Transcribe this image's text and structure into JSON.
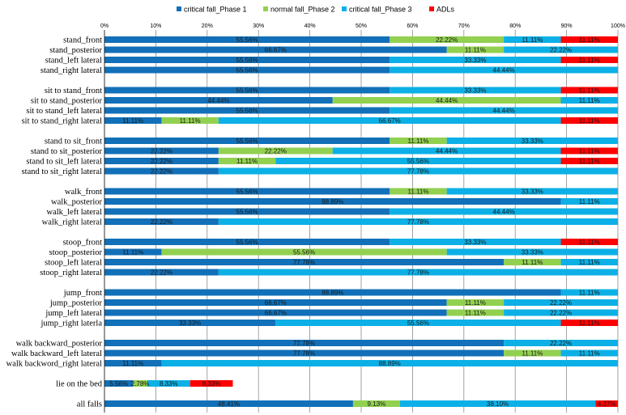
{
  "colors": {
    "critical fall_Phase 1": "#1170b8",
    "normal fall_Phase 2": "#92d050",
    "critical fall_Phase 3": "#0cb0e6",
    "ADLs": "#ff0000",
    "grid": "#8c8c8c",
    "axis": "#000000"
  },
  "chart_data": {
    "type": "bar",
    "orientation": "horizontal",
    "stacked": "percent",
    "title": "",
    "xlabel": "",
    "ylabel": "",
    "xlim": [
      0,
      100
    ],
    "x_ticks": [
      "0%",
      "10%",
      "20%",
      "30%",
      "40%",
      "50%",
      "60%",
      "70%",
      "80%",
      "90%",
      "100%"
    ],
    "x_axis_position": "top",
    "grid": true,
    "legend_position": "top",
    "series": [
      {
        "name": "critical fall_Phase 1"
      },
      {
        "name": "normal fall_Phase 2"
      },
      {
        "name": "critical fall_Phase 3"
      },
      {
        "name": "ADLs"
      }
    ],
    "groups": [
      {
        "rows": [
          {
            "label": "stand_front",
            "values": [
              55.56,
              22.22,
              11.11,
              11.11
            ]
          },
          {
            "label": "stand_posterior",
            "values": [
              66.67,
              11.11,
              22.22,
              0
            ]
          },
          {
            "label": "stand_left lateral",
            "values": [
              55.56,
              0,
              33.33,
              11.11
            ]
          },
          {
            "label": "stand_right lateral",
            "values": [
              55.56,
              0,
              44.44,
              0
            ]
          }
        ]
      },
      {
        "rows": [
          {
            "label": "sit to stand_front",
            "values": [
              55.56,
              0,
              33.33,
              11.11
            ]
          },
          {
            "label": "sit to stand_posterior",
            "values": [
              44.44,
              44.44,
              11.11,
              0
            ]
          },
          {
            "label": "sit to stand_left lateral",
            "values": [
              55.56,
              0,
              44.44,
              0
            ]
          },
          {
            "label": "sit to stand_right lateral",
            "values": [
              11.11,
              11.11,
              66.67,
              11.11
            ]
          }
        ]
      },
      {
        "rows": [
          {
            "label": "stand to sit_front",
            "values": [
              55.56,
              11.11,
              33.33,
              0
            ]
          },
          {
            "label": "stand to sit_posterior",
            "values": [
              22.22,
              22.22,
              44.44,
              11.11
            ]
          },
          {
            "label": "stand to sit_left lateral",
            "values": [
              22.22,
              11.11,
              55.56,
              11.11
            ]
          },
          {
            "label": "stand to sit_right lateral",
            "values": [
              22.22,
              0,
              77.78,
              0
            ]
          }
        ]
      },
      {
        "rows": [
          {
            "label": "walk_front",
            "values": [
              55.56,
              11.11,
              33.33,
              0
            ]
          },
          {
            "label": "walk_posterior",
            "values": [
              88.89,
              0,
              11.11,
              0
            ]
          },
          {
            "label": "walk_left lateral",
            "values": [
              55.56,
              0,
              44.44,
              0
            ]
          },
          {
            "label": "walk_right lateral",
            "values": [
              22.22,
              0,
              77.78,
              0
            ]
          }
        ]
      },
      {
        "rows": [
          {
            "label": "stoop_front",
            "values": [
              55.56,
              0,
              33.33,
              11.11
            ]
          },
          {
            "label": "stoop_posterior",
            "values": [
              11.11,
              55.56,
              33.33,
              0
            ]
          },
          {
            "label": "stoop_left lateral",
            "values": [
              77.78,
              11.11,
              11.11,
              0
            ]
          },
          {
            "label": "stoop_right lateral",
            "values": [
              22.22,
              0,
              77.78,
              0
            ]
          }
        ]
      },
      {
        "rows": [
          {
            "label": "jump_front",
            "values": [
              88.89,
              0,
              11.11,
              0
            ]
          },
          {
            "label": "jump_posterior",
            "values": [
              66.67,
              11.11,
              22.22,
              0
            ]
          },
          {
            "label": "jump_left lateral",
            "values": [
              66.67,
              11.11,
              22.22,
              0
            ]
          },
          {
            "label": "jump_right laterla",
            "values": [
              33.33,
              0,
              55.56,
              11.11
            ]
          }
        ]
      },
      {
        "rows": [
          {
            "label": "walk backward_posterior",
            "values": [
              77.78,
              0,
              22.22,
              0
            ]
          },
          {
            "label": "walk backward_left lateral",
            "values": [
              77.78,
              11.11,
              11.11,
              0
            ]
          },
          {
            "label": "walk backword_right lateral",
            "values": [
              11.11,
              0,
              88.89,
              0
            ]
          }
        ]
      },
      {
        "rows": [
          {
            "label": "lie on the bed",
            "values": [
              5.56,
              2.78,
              8.33,
              8.33
            ]
          }
        ]
      },
      {
        "rows": [
          {
            "label": "all falls",
            "values": [
              48.41,
              9.13,
              38.1,
              4.37
            ]
          }
        ]
      }
    ]
  }
}
